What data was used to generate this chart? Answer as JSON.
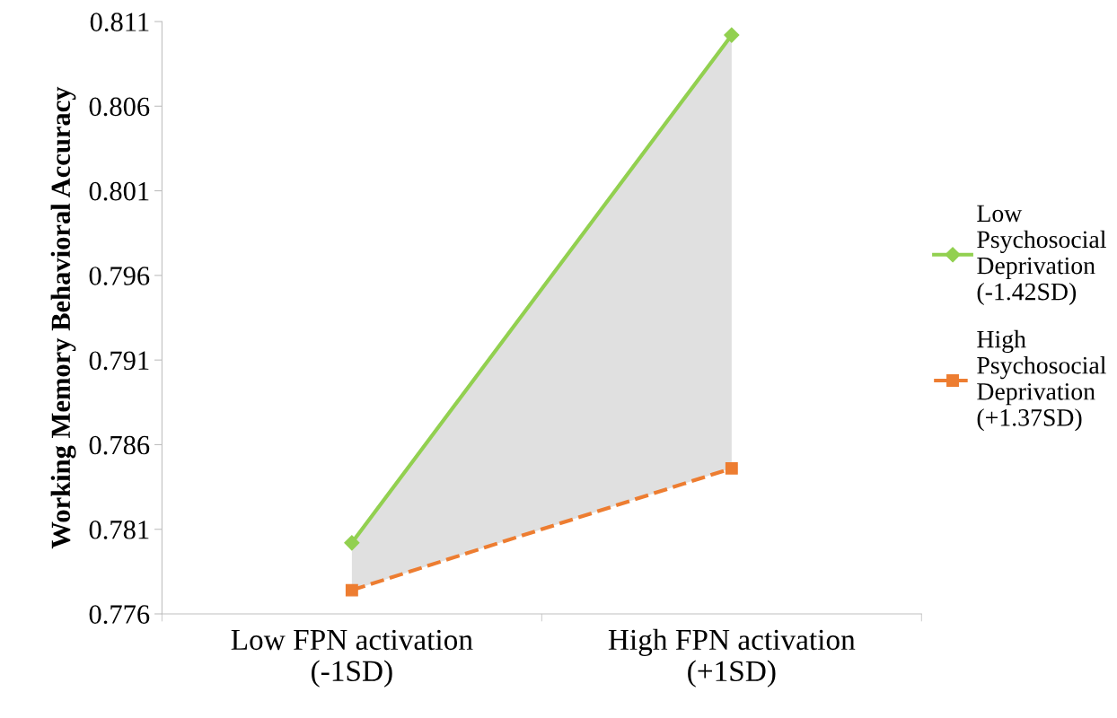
{
  "chart_data": {
    "type": "line",
    "ylabel": "Working Memory Behavioral Accuracy",
    "categories": [
      "Low FPN activation\n(-1SD)",
      "High FPN activation\n(+1SD)"
    ],
    "series": [
      {
        "name": "Low\nPsychosocial\nDeprivation\n(-1.42SD)",
        "color": "#92d050",
        "values": [
          0.7802,
          0.8102
        ],
        "marker": "diamond",
        "line_style": "solid",
        "lower": [
          0.7774,
          0.7846
        ],
        "upper": [
          0.7802,
          0.8102
        ]
      },
      {
        "name": "High\nPsychosocial\nDeprivation\n(+1.37SD)",
        "color": "#ed7d31",
        "values": [
          0.7774,
          0.7846
        ],
        "marker": "square",
        "line_style": "dashed"
      }
    ],
    "ylim": [
      0.776,
      0.811
    ],
    "yticks": [
      0.776,
      0.781,
      0.786,
      0.791,
      0.796,
      0.801,
      0.806,
      0.811
    ],
    "grid": false,
    "legend": "right"
  }
}
